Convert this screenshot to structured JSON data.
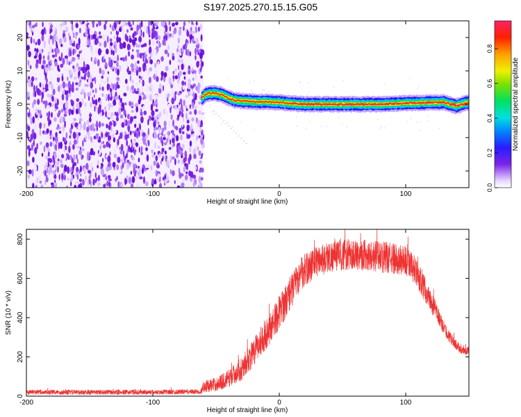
{
  "figure": {
    "title": "S197.2025.270.15.15.G05"
  },
  "colors": {
    "axis": "#000000",
    "snr_line": "#ee3333",
    "noise_purple": "#7a1fe6"
  },
  "colorbar": {
    "label": "Normalized spectral amplitude",
    "ticks": [
      "0.0",
      "0.2",
      "0.4",
      "0.6",
      "0.8"
    ],
    "tick_values": [
      0.0,
      0.2,
      0.4,
      0.6,
      0.8
    ],
    "range": [
      0,
      0.96
    ]
  },
  "chart_data": [
    {
      "type": "heatmap",
      "title": "",
      "xlabel": "Height of straight line (km)",
      "ylabel": "Frequency (Hz)",
      "xlim": [
        -200,
        150
      ],
      "ylim": [
        -25,
        25
      ],
      "xticks": [
        -200,
        -100,
        0,
        100
      ],
      "xtick_labels": [
        "-200",
        "-100",
        "0",
        "100"
      ],
      "yticks": [
        -20,
        -10,
        0,
        10,
        20
      ],
      "ytick_labels": [
        "-20",
        "-10",
        "0",
        "10",
        "20"
      ],
      "noise_region_x": [
        -200,
        -60
      ],
      "signal_region_x": [
        -60,
        150
      ],
      "ridge": {
        "x": [
          -61,
          -58,
          -55,
          -50,
          -45,
          -40,
          -35,
          -30,
          -25,
          -20,
          -15,
          -10,
          -5,
          0,
          10,
          20,
          40,
          60,
          80,
          100,
          120,
          130,
          140,
          150
        ],
        "freq": [
          2.0,
          3.0,
          3.3,
          3.2,
          2.8,
          1.8,
          1.2,
          1.0,
          0.9,
          0.8,
          0.7,
          0.8,
          0.6,
          0.6,
          0.2,
          0.0,
          0.0,
          0.0,
          0.0,
          0.3,
          0.5,
          0.6,
          -0.5,
          0.6
        ]
      }
    },
    {
      "type": "line",
      "title": "",
      "xlabel": "Height of straight line (km)",
      "ylabel": "SNR (10 * v/v)",
      "xlim": [
        -200,
        150
      ],
      "ylim": [
        0,
        850
      ],
      "xticks": [
        -200,
        -100,
        0,
        100
      ],
      "xtick_labels": [
        "-200",
        "-100",
        "0",
        "100"
      ],
      "yticks": [
        0,
        200,
        400,
        600,
        800
      ],
      "ytick_labels": [
        "0",
        "200",
        "400",
        "600",
        "800"
      ],
      "series": [
        {
          "name": "SNR",
          "x": [
            -200,
            -180,
            -160,
            -140,
            -120,
            -100,
            -80,
            -62,
            -60,
            -50,
            -40,
            -30,
            -20,
            -15,
            -10,
            -5,
            0,
            5,
            10,
            15,
            20,
            30,
            40,
            50,
            60,
            70,
            80,
            90,
            100,
            105,
            110,
            115,
            120,
            125,
            130,
            135,
            140,
            145,
            150
          ],
          "values": [
            20,
            20,
            20,
            20,
            20,
            20,
            22,
            22,
            50,
            60,
            90,
            140,
            220,
            280,
            320,
            370,
            430,
            480,
            540,
            600,
            640,
            690,
            710,
            720,
            720,
            720,
            710,
            700,
            690,
            660,
            610,
            550,
            480,
            420,
            350,
            300,
            260,
            230,
            230
          ],
          "noise_amplitude": [
            12,
            12,
            12,
            12,
            12,
            12,
            12,
            12,
            30,
            35,
            45,
            60,
            70,
            75,
            80,
            80,
            85,
            85,
            85,
            85,
            85,
            80,
            80,
            80,
            80,
            80,
            80,
            80,
            80,
            75,
            70,
            65,
            55,
            45,
            35,
            30,
            25,
            20,
            20
          ]
        }
      ]
    }
  ]
}
